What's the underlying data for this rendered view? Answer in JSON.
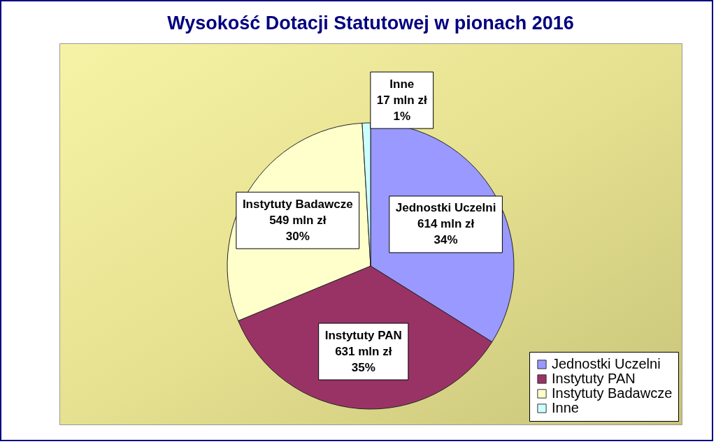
{
  "chart_data": {
    "type": "pie",
    "title": "Wysokość Dotacji Statutowej w pionach 2016",
    "categories": [
      "Jednostki Uczelni",
      "Instytuty PAN",
      "Instytuty Badawcze",
      "Inne"
    ],
    "values": [
      614,
      631,
      549,
      17
    ],
    "colors": [
      "#9999ff",
      "#993366",
      "#ffffcc",
      "#ccffff"
    ],
    "value_labels": [
      "Jednostki Uczelni\n614 mln zł\n34%",
      "Instytuty PAN\n631 mln zł\n35%",
      "Instytuty Badawcze\n549 mln zł\n30%",
      "Inne\n17 mln zł\n1%"
    ],
    "legend": "bottom right"
  }
}
